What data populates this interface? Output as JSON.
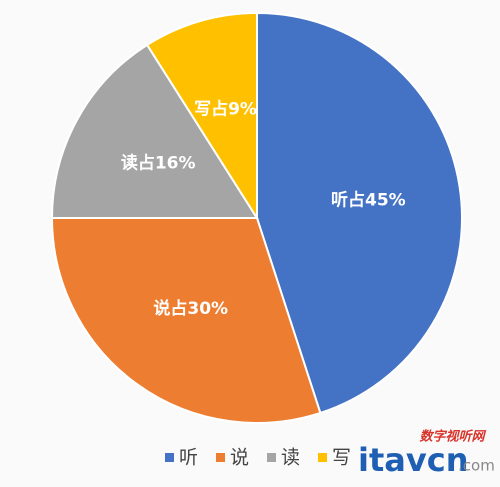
{
  "chart_data": {
    "type": "pie",
    "categories": [
      "听",
      "说",
      "读",
      "写"
    ],
    "values": [
      45,
      30,
      16,
      9
    ],
    "value_labels": [
      "听占45%",
      "说占30%",
      "读占16%",
      "写占9%"
    ],
    "colors": [
      "#4472c4",
      "#ed7d31",
      "#a5a5a5",
      "#ffc000"
    ],
    "legend": "bottom"
  },
  "watermark": {
    "site": "数字视听网",
    "brand": "itavcn",
    "suffix": ".com"
  }
}
